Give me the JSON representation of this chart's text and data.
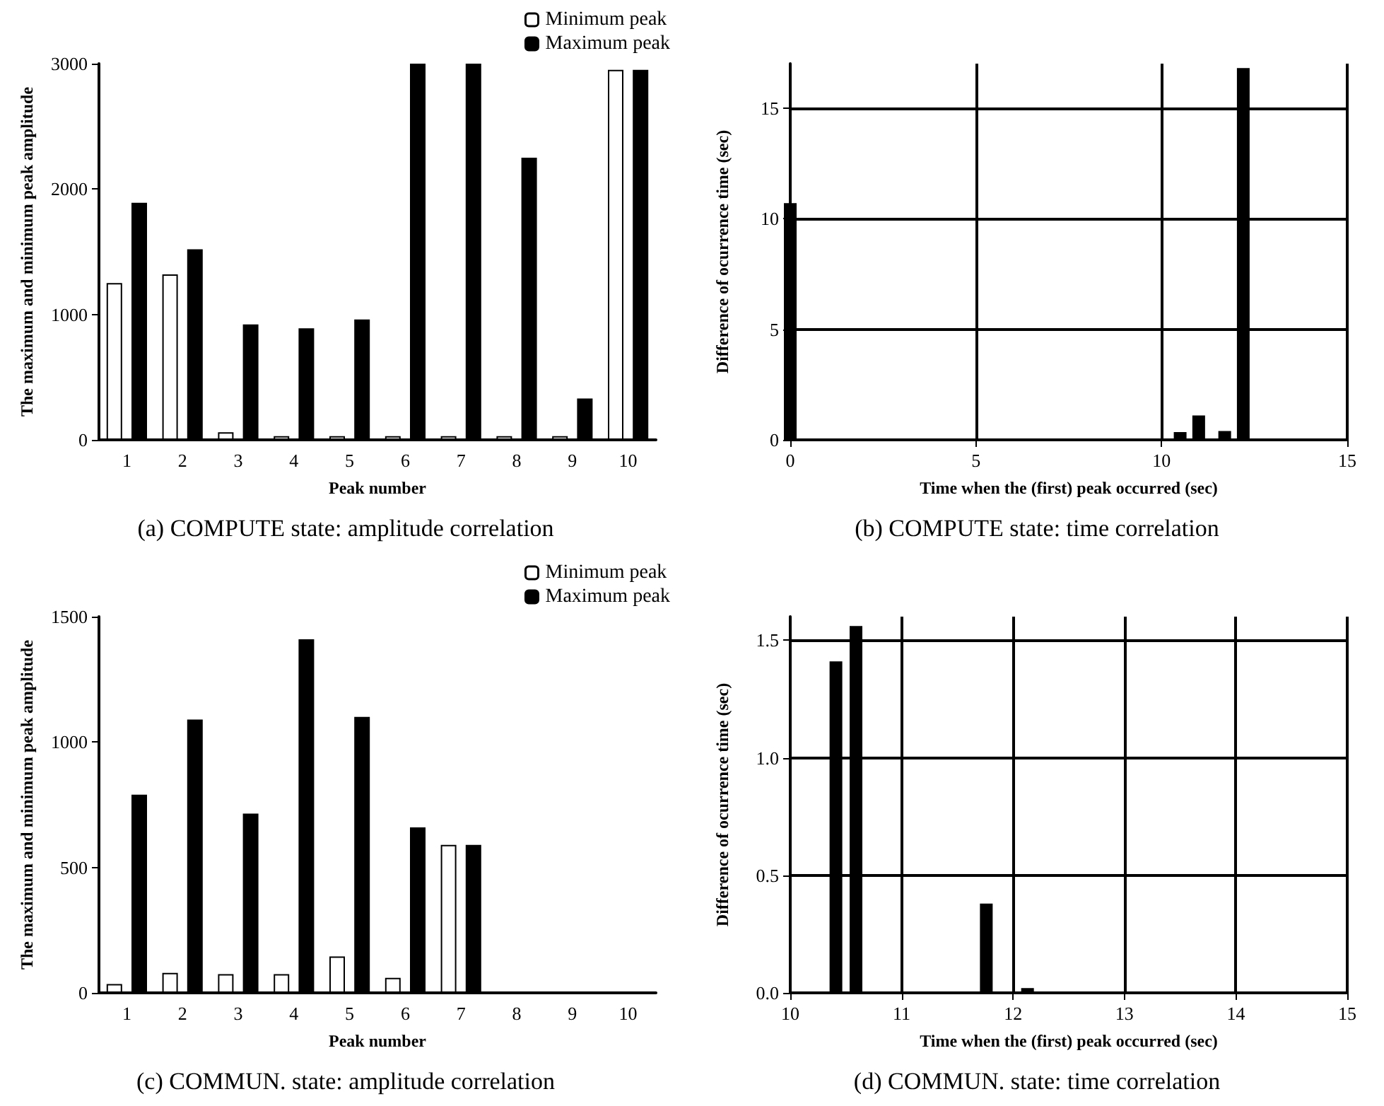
{
  "chart_data": [
    {
      "type": "bar",
      "title": "(a) COMPUTE state: amplitude correlation",
      "xlabel": "Peak number",
      "ylabel": "The maximum and minimum peak amplitude",
      "categories": [
        "1",
        "2",
        "3",
        "4",
        "5",
        "6",
        "7",
        "8",
        "9",
        "10"
      ],
      "series": [
        {
          "name": "Minimum peak",
          "color": "#ffffff",
          "values": [
            1250,
            1320,
            60,
            30,
            30,
            30,
            30,
            30,
            30,
            2950
          ]
        },
        {
          "name": "Maximum peak",
          "color": "#000000",
          "values": [
            1890,
            1520,
            920,
            890,
            960,
            3000,
            3000,
            2250,
            330,
            2950
          ]
        }
      ],
      "ylim": [
        0,
        3000
      ],
      "yticks": [
        0,
        1000,
        2000,
        3000
      ],
      "grid": false,
      "legend": "top right"
    },
    {
      "type": "bar",
      "title": "(b) COMPUTE state: time correlation",
      "xlabel": "Time when the (first) peak occurred (sec)",
      "ylabel": "Difference of ocurrence time (sec)",
      "x": [
        0,
        10.5,
        11,
        11.7,
        12.2
      ],
      "values": [
        10.7,
        0.35,
        1.1,
        0.4,
        16.8
      ],
      "color": "#000000",
      "xlim": [
        0,
        15
      ],
      "xticks": [
        0,
        5,
        10,
        15
      ],
      "ylim": [
        0,
        17
      ],
      "yticks": [
        0,
        5,
        10,
        15
      ],
      "grid": true
    },
    {
      "type": "bar",
      "title": "(c) COMMUN. state: amplitude correlation",
      "xlabel": "Peak number",
      "ylabel": "The maximum and minimum peak amplitude",
      "categories": [
        "1",
        "2",
        "3",
        "4",
        "5",
        "6",
        "7",
        "8",
        "9",
        "10"
      ],
      "series": [
        {
          "name": "Minimum peak",
          "color": "#ffffff",
          "values": [
            35,
            80,
            75,
            75,
            145,
            60,
            590,
            null,
            null,
            null
          ]
        },
        {
          "name": "Maximum peak",
          "color": "#000000",
          "values": [
            790,
            1090,
            715,
            1410,
            1100,
            660,
            590,
            null,
            null,
            null
          ]
        }
      ],
      "ylim": [
        0,
        1500
      ],
      "yticks": [
        0,
        500,
        1000,
        1500
      ],
      "grid": false,
      "legend": "top right"
    },
    {
      "type": "bar",
      "title": "(d) COMMUN. state: time correlation",
      "xlabel": "Time when the (first) peak occurred (sec)",
      "ylabel": "Difference of ocurrence time (sec)",
      "x": [
        10.41,
        10.59,
        11.76,
        12.13
      ],
      "values": [
        1.41,
        1.56,
        0.38,
        0.02
      ],
      "color": "#000000",
      "xlim": [
        10,
        15
      ],
      "xticks": [
        10,
        11,
        12,
        13,
        14,
        15
      ],
      "ylim": [
        0,
        1.6
      ],
      "yticks": [
        {
          "value": 0,
          "label": "0.0"
        },
        {
          "value": 0.5,
          "label": "0.5"
        },
        {
          "value": 1,
          "label": "1.0"
        },
        {
          "value": 1.5,
          "label": "1.5"
        }
      ],
      "grid": true
    }
  ]
}
